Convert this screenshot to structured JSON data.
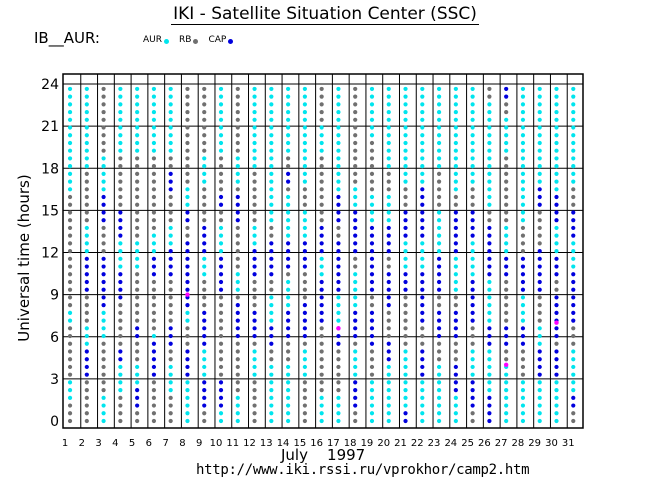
{
  "header": {
    "title": "IKI - Satellite Situation Center (SSC)",
    "station": "IB__AUR:"
  },
  "footer": {
    "month": "July    1997",
    "url": "http://www.iki.rssi.ru/vprokhor/camp2.htm"
  },
  "legend": [
    {
      "label": "AUR",
      "color": "#00e5ee"
    },
    {
      "label": "RB",
      "color": "#707070"
    },
    {
      "label": "CAP",
      "color": "#0000dd"
    }
  ],
  "chart_data": {
    "type": "scatter",
    "title": "IKI - Satellite Situation Center (SSC)",
    "xlabel": "",
    "ylabel": "Universal time (hours)",
    "x": [
      1,
      2,
      3,
      4,
      5,
      6,
      7,
      8,
      9,
      10,
      11,
      12,
      13,
      14,
      15,
      16,
      17,
      18,
      19,
      20,
      21,
      22,
      23,
      24,
      25,
      26,
      27,
      28,
      29,
      30,
      31
    ],
    "xlim": [
      1,
      32
    ],
    "ylim": [
      0,
      24
    ],
    "yticks": [
      0,
      3,
      6,
      9,
      12,
      15,
      18,
      21,
      24
    ],
    "grid": true,
    "legend_position": "top-left",
    "colors": {
      "AUR": "#00e5ee",
      "RB": "#707070",
      "CAP": "#0000dd",
      "other": "#ff00ff"
    },
    "series": [
      {
        "name": "AUR",
        "description": "auroral zone, interleaved with RB on most days"
      },
      {
        "name": "RB",
        "description": "radiation belt"
      },
      {
        "name": "CAP",
        "description": "polar cap, dense in about 9–17 UT"
      }
    ],
    "days": [
      {
        "day": 1,
        "cap": [],
        "aur": [
          [
            1.5,
            3
          ],
          [
            7,
            8
          ],
          [
            16,
            24
          ]
        ]
      },
      {
        "day": 2,
        "cap": [
          [
            3,
            5
          ],
          [
            9,
            12
          ]
        ],
        "aur": [
          [
            5,
            7
          ],
          [
            12,
            14
          ],
          [
            18,
            24
          ]
        ]
      },
      {
        "day": 3,
        "cap": [
          [
            8,
            12
          ],
          [
            14,
            16
          ]
        ],
        "aur": [
          [
            0,
            2
          ],
          [
            6,
            8
          ],
          [
            16,
            19
          ]
        ]
      },
      {
        "day": 4,
        "cap": [
          [
            4,
            5
          ],
          [
            8.5,
            11
          ],
          [
            13,
            15
          ]
        ],
        "aur": [
          [
            2,
            4
          ],
          [
            11,
            13
          ],
          [
            19,
            24
          ]
        ]
      },
      {
        "day": 5,
        "cap": [
          [
            1,
            2.5
          ],
          [
            6,
            7
          ]
        ],
        "aur": [
          [
            2.5,
            4
          ],
          [
            11,
            13
          ],
          [
            19,
            24
          ]
        ]
      },
      {
        "day": 6,
        "cap": [
          [
            3,
            5.5
          ],
          [
            10,
            12
          ]
        ],
        "aur": [
          [
            5.5,
            6.5
          ],
          [
            12,
            13.5
          ],
          [
            19,
            24
          ]
        ]
      },
      {
        "day": 7,
        "cap": [
          [
            5,
            7
          ],
          [
            10,
            12.5
          ],
          [
            16,
            18
          ]
        ],
        "aur": [
          [
            2,
            4
          ],
          [
            12.5,
            14
          ],
          [
            19,
            24
          ]
        ]
      },
      {
        "day": 8,
        "cap": [
          [
            3,
            5
          ],
          [
            8,
            13
          ],
          [
            14,
            15
          ]
        ],
        "aur": [
          [
            0,
            3
          ],
          [
            7,
            8
          ],
          [
            15,
            17
          ]
        ]
      },
      {
        "day": 9,
        "cap": [
          [
            1,
            3
          ],
          [
            5,
            8
          ],
          [
            12,
            14
          ]
        ],
        "aur": [
          [
            3,
            5
          ],
          [
            10,
            12
          ],
          [
            17,
            19
          ]
        ]
      },
      {
        "day": 10,
        "cap": [
          [
            1,
            3
          ],
          [
            9,
            12
          ],
          [
            15,
            16
          ]
        ],
        "aur": [
          [
            0,
            1
          ],
          [
            12,
            14
          ],
          [
            19,
            24
          ]
        ]
      },
      {
        "day": 11,
        "cap": [
          [
            6,
            8.5
          ],
          [
            14,
            16
          ]
        ],
        "aur": [
          [
            0,
            2
          ],
          [
            9,
            11
          ],
          [
            17,
            19
          ]
        ]
      },
      {
        "day": 12,
        "cap": [
          [
            5.5,
            8
          ],
          [
            10,
            12.5
          ]
        ],
        "aur": [
          [
            3,
            5
          ],
          [
            12.5,
            14
          ],
          [
            18,
            24
          ]
        ]
      },
      {
        "day": 13,
        "cap": [
          [
            5,
            7
          ],
          [
            10,
            13
          ]
        ],
        "aur": [
          [
            0,
            4
          ],
          [
            7,
            9
          ],
          [
            14,
            24
          ]
        ]
      },
      {
        "day": 14,
        "cap": [
          [
            6,
            8
          ],
          [
            11,
            13
          ],
          [
            17,
            18
          ]
        ],
        "aur": [
          [
            0,
            4
          ],
          [
            8,
            10
          ],
          [
            13,
            16
          ],
          [
            19,
            24
          ]
        ]
      },
      {
        "day": 15,
        "cap": [
          [
            6,
            8.5
          ],
          [
            11,
            13
          ]
        ],
        "aur": [
          [
            3,
            5
          ],
          [
            13,
            15
          ],
          [
            17,
            24
          ]
        ]
      },
      {
        "day": 16,
        "cap": [
          [
            7,
            10
          ],
          [
            12,
            14
          ]
        ],
        "aur": [
          [
            0,
            2
          ],
          [
            10,
            12
          ],
          [
            19,
            21
          ]
        ]
      },
      {
        "day": 17,
        "cap": [
          [
            5,
            7
          ],
          [
            9,
            13
          ],
          [
            14,
            16
          ]
        ],
        "aur": [
          [
            0,
            2
          ],
          [
            7,
            9
          ],
          [
            16,
            24
          ]
        ]
      },
      {
        "day": 18,
        "cap": [
          [
            1,
            3
          ],
          [
            6,
            8
          ],
          [
            12,
            15
          ]
        ],
        "aur": [
          [
            3,
            5
          ],
          [
            8,
            11
          ],
          [
            15,
            17
          ]
        ]
      },
      {
        "day": 19,
        "cap": [
          [
            5,
            8
          ],
          [
            9,
            14
          ]
        ],
        "aur": [
          [
            0,
            3
          ],
          [
            14,
            16
          ],
          [
            20,
            24
          ]
        ]
      },
      {
        "day": 20,
        "cap": [
          [
            4,
            6
          ],
          [
            8,
            11
          ],
          [
            12,
            14
          ]
        ],
        "aur": [
          [
            0,
            4
          ],
          [
            14,
            16
          ],
          [
            18,
            24
          ]
        ]
      },
      {
        "day": 21,
        "cap": [
          [
            0,
            1
          ],
          [
            9,
            11
          ],
          [
            13,
            15
          ]
        ],
        "aur": [
          [
            1,
            5
          ],
          [
            11,
            13
          ],
          [
            17,
            24
          ]
        ]
      },
      {
        "day": 22,
        "cap": [
          [
            3,
            5
          ],
          [
            7,
            10.5
          ],
          [
            13,
            17
          ]
        ],
        "aur": [
          [
            0,
            3
          ],
          [
            10.5,
            13
          ],
          [
            17,
            24
          ]
        ]
      },
      {
        "day": 23,
        "cap": [
          [
            6,
            8
          ],
          [
            9,
            12
          ]
        ],
        "aur": [
          [
            0,
            4
          ],
          [
            12,
            15
          ],
          [
            18,
            24
          ]
        ]
      },
      {
        "day": 24,
        "cap": [
          [
            2,
            4
          ],
          [
            6,
            8
          ],
          [
            12,
            15
          ]
        ],
        "aur": [
          [
            0,
            2
          ],
          [
            9,
            12
          ],
          [
            16,
            24
          ]
        ]
      },
      {
        "day": 25,
        "cap": [
          [
            1,
            3
          ],
          [
            7,
            10
          ],
          [
            13,
            15
          ]
        ],
        "aur": [
          [
            3,
            5
          ],
          [
            10,
            13
          ],
          [
            17,
            24
          ]
        ]
      },
      {
        "day": 26,
        "cap": [
          [
            0,
            2
          ],
          [
            5,
            7
          ],
          [
            10,
            14
          ],
          [
            24,
            25
          ]
        ],
        "aur": [
          [
            2,
            5
          ],
          [
            7,
            10
          ],
          [
            15,
            23
          ]
        ]
      },
      {
        "day": 27,
        "cap": [
          [
            5,
            7
          ],
          [
            10,
            12
          ],
          [
            23,
            24
          ]
        ],
        "aur": [
          [
            0,
            4
          ],
          [
            12,
            14
          ],
          [
            19,
            22
          ]
        ]
      },
      {
        "day": 28,
        "cap": [
          [
            5,
            7
          ],
          [
            9,
            12
          ]
        ],
        "aur": [
          [
            0,
            3
          ],
          [
            7,
            9
          ],
          [
            14,
            24
          ]
        ]
      },
      {
        "day": 29,
        "cap": [
          [
            3,
            5
          ],
          [
            9,
            12.5
          ],
          [
            15,
            17
          ]
        ],
        "aur": [
          [
            0,
            3
          ],
          [
            5,
            7
          ],
          [
            17,
            24
          ]
        ]
      },
      {
        "day": 30,
        "cap": [
          [
            3,
            5
          ],
          [
            6,
            9
          ],
          [
            10,
            12
          ],
          [
            14,
            16
          ]
        ],
        "aur": [
          [
            0,
            3
          ],
          [
            12,
            14
          ],
          [
            16,
            24
          ]
        ]
      },
      {
        "day": 31,
        "cap": [
          [
            1,
            2
          ],
          [
            7,
            11
          ],
          [
            13,
            15
          ]
        ],
        "aur": [
          [
            2,
            5
          ],
          [
            11,
            13
          ],
          [
            17,
            24
          ]
        ]
      }
    ],
    "other_points": [
      {
        "day": 8,
        "hour": 9
      },
      {
        "day": 17,
        "hour": 6.6
      },
      {
        "day": 27,
        "hour": 4
      },
      {
        "day": 30,
        "hour": 7
      }
    ]
  }
}
